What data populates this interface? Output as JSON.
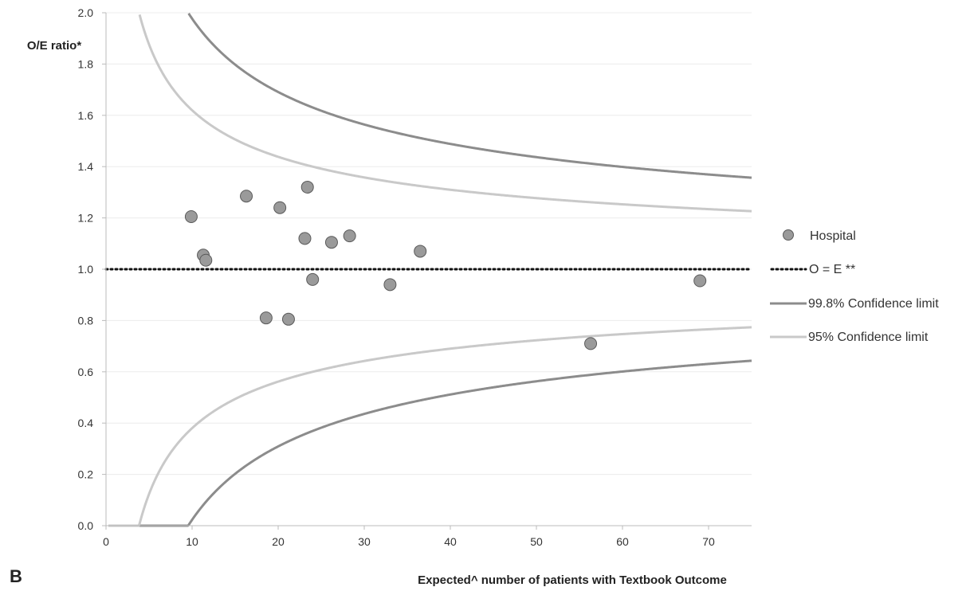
{
  "panel_label": "B",
  "chart_data": {
    "type": "scatter",
    "ylabel": "O/E ratio*",
    "xlabel": "Expected^ number of patients with Textbook Outcome",
    "xlim": [
      0,
      75
    ],
    "ylim": [
      0,
      2.0
    ],
    "x_ticks": [
      "0",
      "10",
      "20",
      "30",
      "40",
      "50",
      "60",
      "70"
    ],
    "y_ticks": [
      "0.0",
      "0.2",
      "0.4",
      "0.6",
      "0.8",
      "1.0",
      "1.2",
      "1.4",
      "1.6",
      "1.8",
      "2.0"
    ],
    "grid": "horizontal",
    "legend_position": "right",
    "series": [
      {
        "name": "Hospital",
        "kind": "points",
        "color": "#9a9a9a",
        "points": [
          {
            "x": 9.9,
            "y": 1.205
          },
          {
            "x": 11.3,
            "y": 1.055
          },
          {
            "x": 11.6,
            "y": 1.035
          },
          {
            "x": 16.3,
            "y": 1.285
          },
          {
            "x": 18.6,
            "y": 0.81
          },
          {
            "x": 20.2,
            "y": 1.24
          },
          {
            "x": 21.2,
            "y": 0.805
          },
          {
            "x": 23.1,
            "y": 1.12
          },
          {
            "x": 23.4,
            "y": 1.32
          },
          {
            "x": 24.0,
            "y": 0.96
          },
          {
            "x": 26.2,
            "y": 1.105
          },
          {
            "x": 28.3,
            "y": 1.13
          },
          {
            "x": 33.0,
            "y": 0.94
          },
          {
            "x": 36.5,
            "y": 1.07
          },
          {
            "x": 56.3,
            "y": 0.71
          },
          {
            "x": 69.0,
            "y": 0.955
          }
        ]
      },
      {
        "name": "O = E **",
        "kind": "reference",
        "color": "#111111",
        "y": 1.0
      },
      {
        "name": "99.8% Confidence limit",
        "kind": "funnel",
        "color": "#8c8c8c",
        "z": 3.09
      },
      {
        "name": "95% Confidence limit",
        "kind": "funnel",
        "color": "#c9c9c9",
        "z": 1.96
      }
    ]
  }
}
